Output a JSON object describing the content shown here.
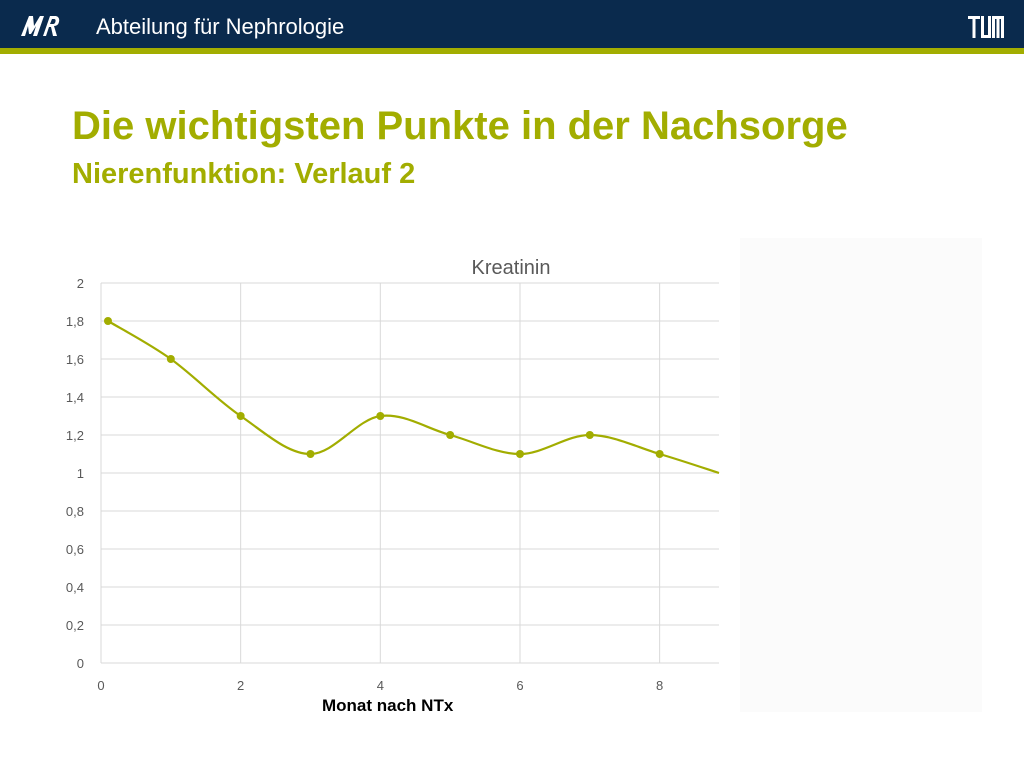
{
  "header": {
    "logo_left": "MRI",
    "department": "Abteilung für Nephrologie",
    "logo_right": "TUM"
  },
  "slide": {
    "title": "Die wichtigsten Punkte in der Nachsorge",
    "subtitle": "Nierenfunktion: Verlauf 2"
  },
  "colors": {
    "header_bg": "#0a2a4d",
    "accent": "#a2ad00",
    "series": "#a2ad00",
    "grid": "#d9d9d9",
    "tick_text": "#595959"
  },
  "chart_data": {
    "type": "line",
    "title": "Kreatinin",
    "xlabel": "Monat nach NTx",
    "ylabel": "",
    "x": [
      0.1,
      1,
      2,
      3,
      4,
      5,
      6,
      7,
      8,
      8.85
    ],
    "marker_count": 9,
    "series": [
      {
        "values": [
          1.8,
          1.6,
          1.3,
          1.1,
          1.3,
          1.2,
          1.1,
          1.2,
          1.1,
          1.0
        ]
      }
    ],
    "xlim": [
      0,
      8.85
    ],
    "ylim": [
      0,
      2
    ],
    "xticks": [
      0,
      2,
      4,
      6,
      8
    ],
    "xtick_labels": [
      "0",
      "2",
      "4",
      "6",
      "8"
    ],
    "yticks": [
      0,
      0.2,
      0.4,
      0.6,
      0.8,
      1,
      1.2,
      1.4,
      1.6,
      1.8,
      2
    ],
    "ytick_labels": [
      "0",
      "0,2",
      "0,4",
      "0,6",
      "0,8",
      "1",
      "1,2",
      "1,4",
      "1,6",
      "1,8",
      "2"
    ],
    "grid": true,
    "smooth": true,
    "legend": "none"
  }
}
